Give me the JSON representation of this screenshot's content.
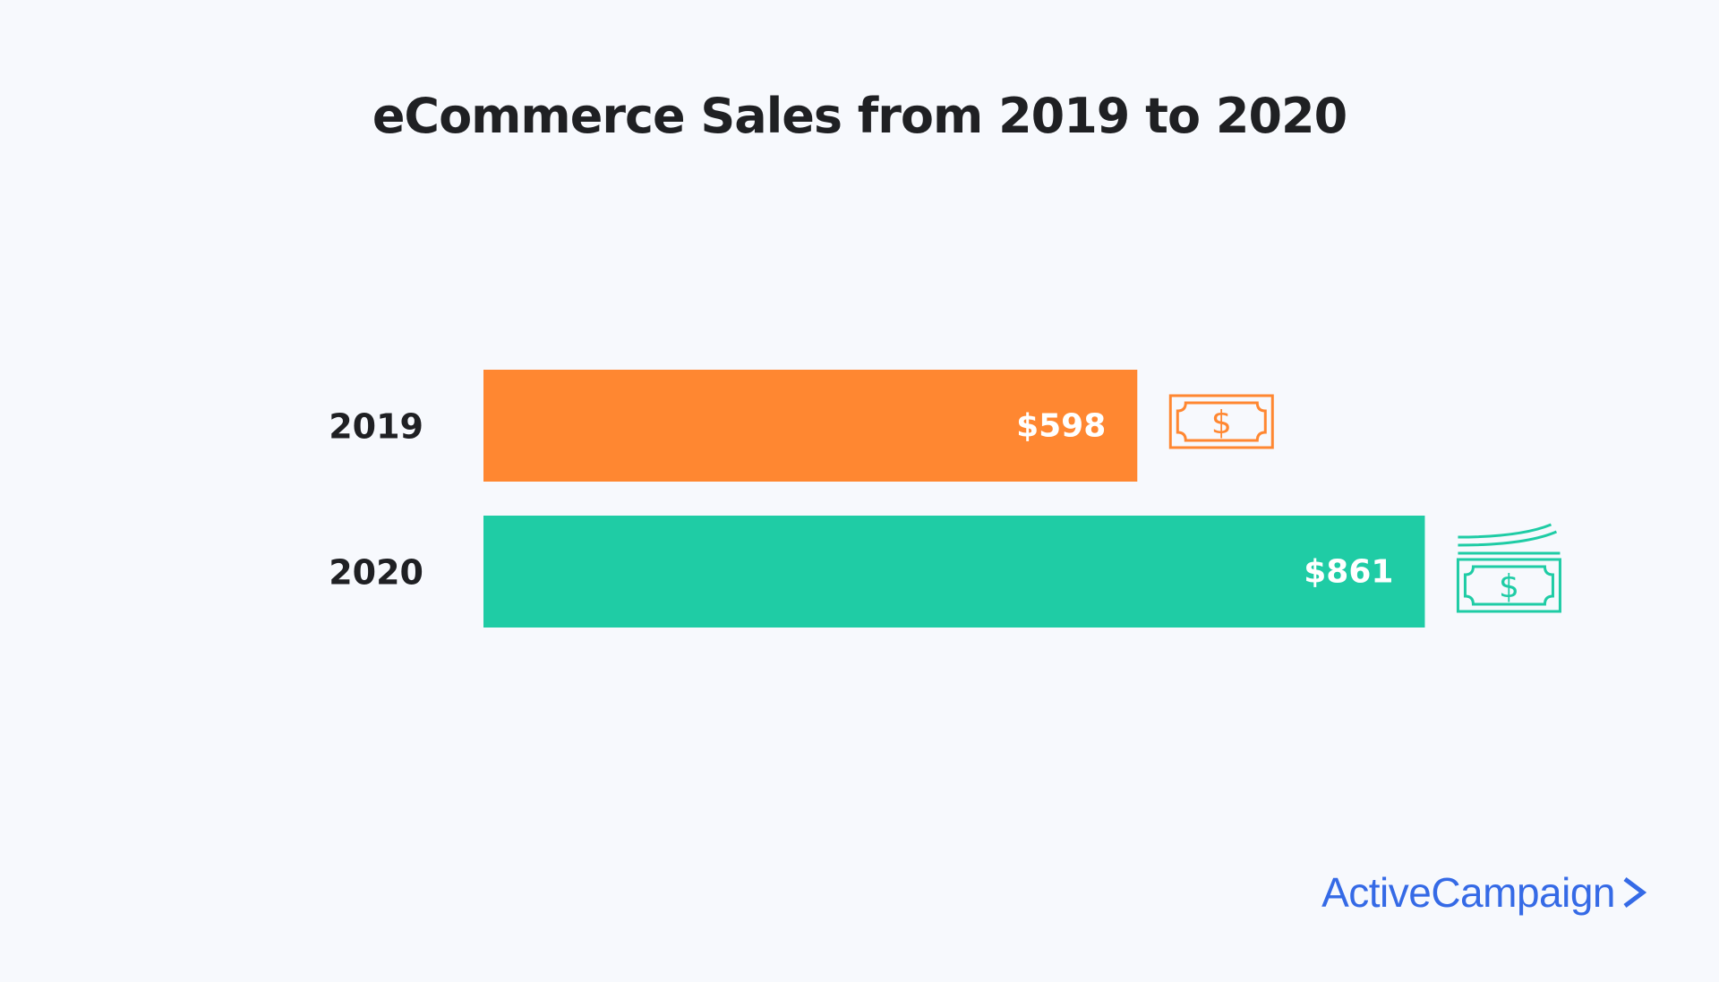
{
  "chart_data": {
    "type": "bar",
    "orientation": "horizontal",
    "title": "eCommerce Sales from 2019 to 2020",
    "categories": [
      "2019",
      "2020"
    ],
    "values": [
      598,
      861
    ],
    "value_labels": [
      "$598",
      "$861"
    ],
    "colors": [
      "#ff8731",
      "#1fcca5"
    ],
    "icons": [
      "dollar-bill-icon",
      "stacked-dollar-bills-icon"
    ],
    "xlim": [
      0,
      1000
    ],
    "grid": false,
    "legend": "none"
  },
  "brand": {
    "name": "ActiveCampaign",
    "color": "#356ae6",
    "icon": "chevron-right-icon"
  }
}
